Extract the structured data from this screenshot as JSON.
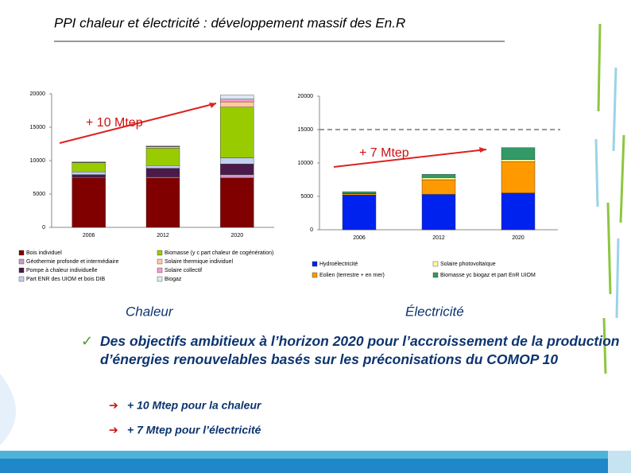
{
  "title": "PPI chaleur et électricité : développement massif des En.R",
  "chart_data": [
    {
      "type": "bar",
      "stacked": true,
      "annotation": "+ 10 Mtep",
      "caption": "Chaleur",
      "categories": [
        "2006",
        "2012",
        "2020"
      ],
      "ylim": [
        0,
        20000
      ],
      "yticks": [
        0,
        5000,
        10000,
        15000,
        20000
      ],
      "series": [
        {
          "name": "Bois individuel",
          "color": "#800000",
          "values": [
            7400,
            7400,
            7400
          ]
        },
        {
          "name": "Géothermie profonde et intermédiaire",
          "color": "#cc99cc",
          "values": [
            100,
            150,
            500
          ]
        },
        {
          "name": "Pompe à chaleur individuelle",
          "color": "#4b1a4b",
          "values": [
            400,
            1300,
            1600
          ]
        },
        {
          "name": "Part ENR des UIOM et bois DIB",
          "color": "#c0d0f0",
          "values": [
            400,
            400,
            900
          ]
        },
        {
          "name": "Biomasse (y c part chaleur de cogénération)",
          "color": "#99cc00",
          "values": [
            1400,
            2600,
            7600
          ]
        },
        {
          "name": "Solaire thermique individuel",
          "color": "#ffcc99",
          "values": [
            30,
            200,
            800
          ]
        },
        {
          "name": "Solaire collectif",
          "color": "#ff99cc",
          "values": [
            10,
            50,
            400
          ]
        },
        {
          "name": "Biogaz",
          "color": "#dde8f5",
          "values": [
            50,
            100,
            600
          ]
        }
      ]
    },
    {
      "type": "bar",
      "stacked": true,
      "annotation": "+ 7 Mtep",
      "caption": "Électricité",
      "dashed_line": 15000,
      "categories": [
        "2006",
        "2012",
        "2020"
      ],
      "ylim": [
        0,
        20000
      ],
      "yticks": [
        0,
        5000,
        10000,
        15000,
        20000
      ],
      "series": [
        {
          "name": "Hydroélectricité",
          "color": "#0022ee",
          "values": [
            5200,
            5300,
            5500
          ]
        },
        {
          "name": "Eolien (terrestre + en mer)",
          "color": "#ff9900",
          "values": [
            200,
            2200,
            4700
          ]
        },
        {
          "name": "Solaire photovoltaïque",
          "color": "#ffff99",
          "values": [
            50,
            300,
            300
          ]
        },
        {
          "name": "Biomasse yc biogaz et part EnR UIOM",
          "color": "#339966",
          "values": [
            250,
            500,
            1800
          ]
        }
      ]
    }
  ],
  "bullet": "Des objectifs ambitieux à l’horizon 2020 pour l’accroissement de la production d’énergies renouvelables basés sur les préconisations du COMOP 10",
  "sub_bullets": [
    "+ 10 Mtep pour la chaleur",
    "+ 7 Mtep pour l’électricité"
  ]
}
